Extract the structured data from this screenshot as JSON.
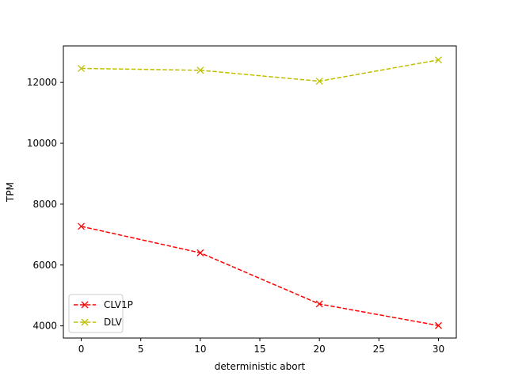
{
  "chart_data": {
    "type": "line",
    "title": "",
    "xlabel": "deterministic abort",
    "ylabel": "TPM",
    "x": [
      0,
      10,
      20,
      30
    ],
    "xlim": [
      -1.5,
      31.5
    ],
    "ylim": [
      3600,
      13200
    ],
    "xticks": [
      0,
      5,
      10,
      15,
      20,
      25,
      30
    ],
    "yticks": [
      4000,
      6000,
      8000,
      10000,
      12000
    ],
    "grid": false,
    "legend_position": "lower-left",
    "series": [
      {
        "name": "CLV1P",
        "color": "#ff0000",
        "line_style": "dashed",
        "marker": "x",
        "values": [
          7270,
          6400,
          4720,
          4010
        ]
      },
      {
        "name": "DLV",
        "color": "#bfbf00",
        "line_style": "dashed",
        "marker": "x",
        "values": [
          12460,
          12400,
          12040,
          12740
        ]
      }
    ]
  }
}
